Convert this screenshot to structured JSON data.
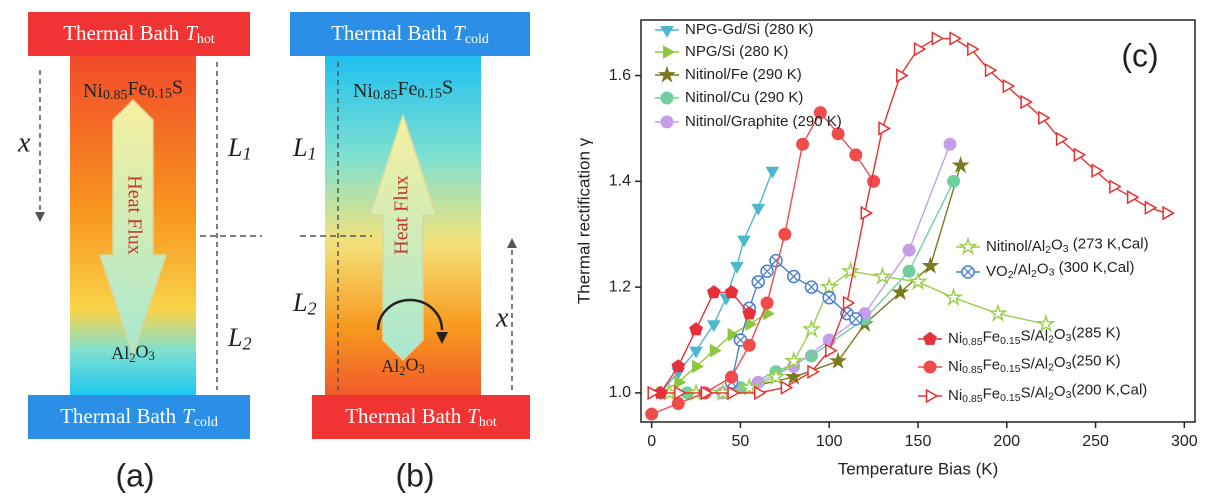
{
  "panels": [
    {
      "label": "(a)",
      "top_bath": {
        "text": "Thermal Bath",
        "symbol": "T",
        "subscript": "hot"
      },
      "bottom_bath": {
        "text": "Thermal Bath",
        "symbol": "T",
        "subscript": "cold"
      },
      "material_top": "Ni0.85Fe0.15S",
      "material_bottom": "Al2O3",
      "flux": "Heat Flux",
      "coordinate": "x",
      "lengths": [
        "L1",
        "L2"
      ]
    },
    {
      "label": "(b)",
      "top_bath": {
        "text": "Thermal Bath",
        "symbol": "T",
        "subscript": "cold"
      },
      "bottom_bath": {
        "text": "Thermal Bath",
        "symbol": "T",
        "subscript": "hot"
      },
      "material_top": "Ni0.85Fe0.15S",
      "material_bottom": "Al2O3",
      "flux": "Heat Flux",
      "coordinate": "x",
      "lengths": [
        "L1",
        "L2"
      ]
    }
  ],
  "chart_data": {
    "type": "line",
    "panel_label": "(c)",
    "x_label": "Temperature Bias (K)",
    "y_label": "Thermal rectification γ",
    "xlim": [
      -6,
      306
    ],
    "xticks": [
      0,
      50,
      100,
      150,
      200,
      250,
      300
    ],
    "ylim": [
      0.945,
      1.705
    ],
    "yticks": [
      {
        "value": 1,
        "label": "1.0"
      },
      1.2,
      1.4,
      1.6
    ],
    "series": [
      {
        "name": "NPG-Gd/Si (280 K)",
        "color": "#4db8cc",
        "marker": "triangle-down",
        "filled": true,
        "x": [
          5,
          15,
          25,
          35,
          42,
          48,
          52,
          60,
          68
        ],
        "values": [
          1.0,
          1.04,
          1.08,
          1.13,
          1.18,
          1.24,
          1.29,
          1.35,
          1.42
        ]
      },
      {
        "name": "NPG/Si (280 K)",
        "color": "#8dc63f",
        "marker": "triangle-right",
        "filled": true,
        "x": [
          5,
          15,
          25,
          35,
          45,
          55,
          65
        ],
        "values": [
          1.0,
          1.02,
          1.05,
          1.08,
          1.11,
          1.13,
          1.15
        ]
      },
      {
        "name": "Nitinol/Fe (290 K)",
        "color": "#7a7a1e",
        "marker": "star",
        "filled": true,
        "x": [
          10,
          40,
          80,
          105,
          120,
          140,
          157,
          174
        ],
        "values": [
          1.0,
          1.0,
          1.03,
          1.06,
          1.13,
          1.19,
          1.24,
          1.43
        ]
      },
      {
        "name": "Nitinol/Cu (290 K)",
        "color": "#6fcf9f",
        "marker": "circle",
        "filled": true,
        "x": [
          20,
          50,
          70,
          90,
          120,
          145,
          170
        ],
        "values": [
          1.0,
          1.01,
          1.04,
          1.07,
          1.14,
          1.23,
          1.4
        ]
      },
      {
        "name": "Nitinol/Graphite (290 K)",
        "color": "#c49ee8",
        "marker": "circle",
        "filled": true,
        "x": [
          40,
          60,
          80,
          100,
          120,
          145,
          168
        ],
        "values": [
          1.0,
          1.02,
          1.05,
          1.1,
          1.15,
          1.27,
          1.47
        ]
      },
      {
        "name": "Nitinol/Al2O3 (273 K,Cal)",
        "color": "#9ad04d",
        "marker": "star",
        "filled": false,
        "x": [
          10,
          25,
          40,
          55,
          70,
          80,
          90,
          100,
          112,
          130,
          150,
          170,
          195,
          222
        ],
        "values": [
          1.0,
          1.0,
          1.0,
          1.01,
          1.03,
          1.06,
          1.12,
          1.2,
          1.23,
          1.22,
          1.21,
          1.18,
          1.15,
          1.13
        ]
      },
      {
        "name": "VO2/Al2O3 (300 K,Cal)",
        "color": "#4a7fd0",
        "marker": "circle-x",
        "filled": false,
        "x": [
          45,
          50,
          55,
          60,
          65,
          70,
          80,
          90,
          100,
          110,
          115
        ],
        "values": [
          1.02,
          1.1,
          1.16,
          1.21,
          1.23,
          1.25,
          1.22,
          1.2,
          1.18,
          1.15,
          1.14
        ]
      },
      {
        "name": "Ni0.85Fe0.15S/Al2O3(285 K)",
        "color": "#e8303a",
        "marker": "pentagon",
        "filled": true,
        "x": [
          5,
          15,
          25,
          35,
          45,
          55
        ],
        "values": [
          1.0,
          1.05,
          1.12,
          1.19,
          1.19,
          1.15
        ]
      },
      {
        "name": "Ni0.85Fe0.15S/Al2O3(250 K)",
        "color": "#f04c4c",
        "marker": "circle",
        "filled": true,
        "x": [
          0,
          15,
          30,
          45,
          55,
          65,
          75,
          85,
          95,
          105,
          115,
          125
        ],
        "values": [
          0.96,
          0.98,
          1.0,
          1.03,
          1.09,
          1.17,
          1.3,
          1.47,
          1.53,
          1.49,
          1.45,
          1.4
        ]
      },
      {
        "name": "Ni0.85Fe0.15S/Al2O3(200 K,Cal)",
        "color": "#e83030",
        "marker": "triangle-right",
        "filled": false,
        "x": [
          0,
          15,
          30,
          45,
          60,
          75,
          90,
          100,
          110,
          120,
          130,
          140,
          150,
          160,
          170,
          180,
          190,
          200,
          210,
          220,
          230,
          240,
          250,
          260,
          270,
          280,
          290
        ],
        "values": [
          1.0,
          1.0,
          1.0,
          1.0,
          1.0,
          1.01,
          1.04,
          1.08,
          1.17,
          1.34,
          1.5,
          1.6,
          1.65,
          1.67,
          1.67,
          1.65,
          1.61,
          1.58,
          1.55,
          1.52,
          1.48,
          1.45,
          1.42,
          1.39,
          1.37,
          1.35,
          1.34
        ]
      }
    ]
  }
}
